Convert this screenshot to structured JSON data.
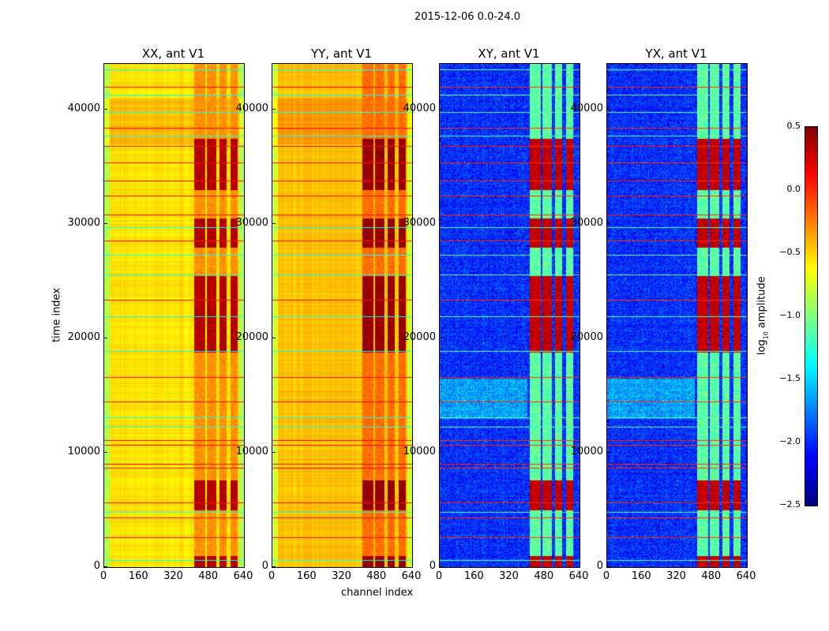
{
  "chart_data": {
    "type": "heatmap",
    "title": "2015-12-06 0.0-24.0",
    "xlabel": "channel index",
    "ylabel": "time index",
    "xlim": [
      0,
      640
    ],
    "ylim": [
      0,
      44000
    ],
    "xticks": [
      "0",
      "160",
      "320",
      "480",
      "640"
    ],
    "yticks": [
      "0",
      "10000",
      "20000",
      "30000",
      "40000"
    ],
    "colormap": "jet",
    "colorbar": {
      "label": "log10 amplitude",
      "label_main": "log",
      "label_sub": "10",
      "label_rest": " amplitude",
      "range": [
        -2.5,
        0.5
      ],
      "ticks": [
        "0.5",
        "0.0",
        "−0.5",
        "−1.0",
        "−1.5",
        "−2.0",
        "−2.5"
      ]
    },
    "panels": [
      {
        "title": "XX, ant V1",
        "base_level": -0.55,
        "band_level": -0.3,
        "hot_level": 0.35,
        "kind": "auto"
      },
      {
        "title": "YY, ant V1",
        "base_level": -0.45,
        "band_level": -0.2,
        "hot_level": 0.45,
        "kind": "auto"
      },
      {
        "title": "XY, ant V1",
        "base_level": -2.0,
        "band_level": -1.1,
        "hot_level": 0.3,
        "kind": "cross"
      },
      {
        "title": "YX, ant V1",
        "base_level": -2.0,
        "band_level": -1.1,
        "hot_level": 0.3,
        "kind": "cross"
      }
    ],
    "rfi_channel_bands": [
      [
        410,
        460
      ],
      [
        470,
        510
      ],
      [
        525,
        560
      ],
      [
        575,
        610
      ]
    ],
    "hot_time_ranges": [
      [
        0,
        1000
      ],
      [
        5000,
        7600
      ],
      [
        18800,
        25500
      ],
      [
        28000,
        30500
      ],
      [
        33000,
        37500
      ]
    ],
    "flagged_time_lines_high": [
      2600,
      4350,
      5670,
      8700,
      9050,
      10700,
      11100,
      14500,
      16600,
      23350,
      28530,
      30800,
      32500,
      33800,
      35400,
      36800,
      38400,
      42000
    ],
    "flagged_time_lines_low": [
      600,
      4800,
      12300,
      13100,
      18900,
      21900,
      25600,
      27300,
      29700,
      37700,
      39800,
      41300,
      43500
    ]
  }
}
